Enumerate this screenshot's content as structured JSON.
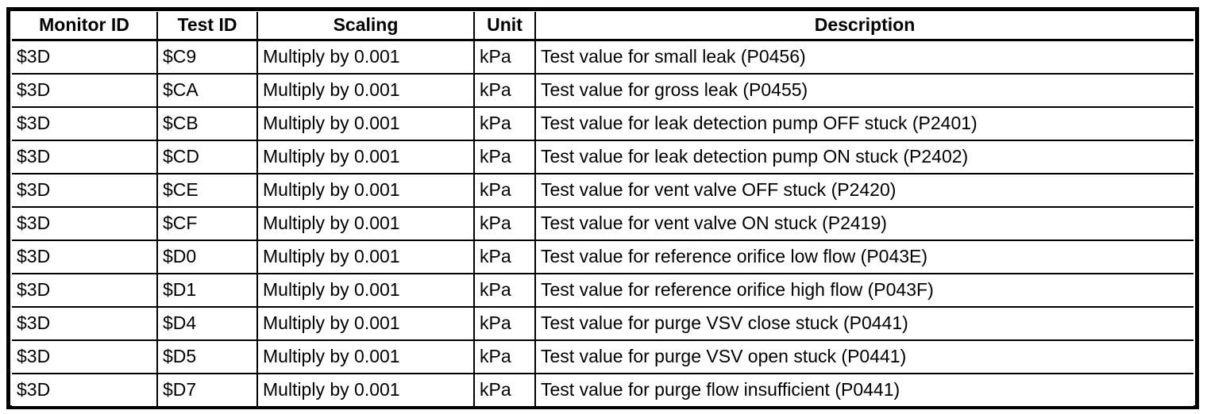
{
  "table": {
    "columns": [
      "Monitor ID",
      "Test ID",
      "Scaling",
      "Unit",
      "Description"
    ],
    "rows": [
      [
        "$3D",
        "$C9",
        "Multiply by 0.001",
        "kPa",
        "Test value for small leak (P0456)"
      ],
      [
        "$3D",
        "$CA",
        "Multiply by 0.001",
        "kPa",
        "Test value for gross leak (P0455)"
      ],
      [
        "$3D",
        "$CB",
        "Multiply by 0.001",
        "kPa",
        "Test value for leak detection pump OFF stuck (P2401)"
      ],
      [
        "$3D",
        "$CD",
        "Multiply by 0.001",
        "kPa",
        "Test value for leak detection pump ON stuck (P2402)"
      ],
      [
        "$3D",
        "$CE",
        "Multiply by 0.001",
        "kPa",
        "Test value for vent valve OFF stuck (P2420)"
      ],
      [
        "$3D",
        "$CF",
        "Multiply by 0.001",
        "kPa",
        "Test value for vent valve ON stuck (P2419)"
      ],
      [
        "$3D",
        "$D0",
        "Multiply by 0.001",
        "kPa",
        "Test value for reference orifice low flow (P043E)"
      ],
      [
        "$3D",
        "$D1",
        "Multiply by 0.001",
        "kPa",
        "Test value for reference orifice high flow (P043F)"
      ],
      [
        "$3D",
        "$D4",
        "Multiply by 0.001",
        "kPa",
        "Test value for purge VSV close stuck (P0441)"
      ],
      [
        "$3D",
        "$D5",
        "Multiply by 0.001",
        "kPa",
        "Test value for purge VSV open stuck (P0441)"
      ],
      [
        "$3D",
        "$D7",
        "Multiply by 0.001",
        "kPa",
        "Test value for purge flow insufficient (P0441)"
      ]
    ]
  },
  "colors": {
    "border": "#000000",
    "background": "#ffffff",
    "text": "#000000"
  }
}
